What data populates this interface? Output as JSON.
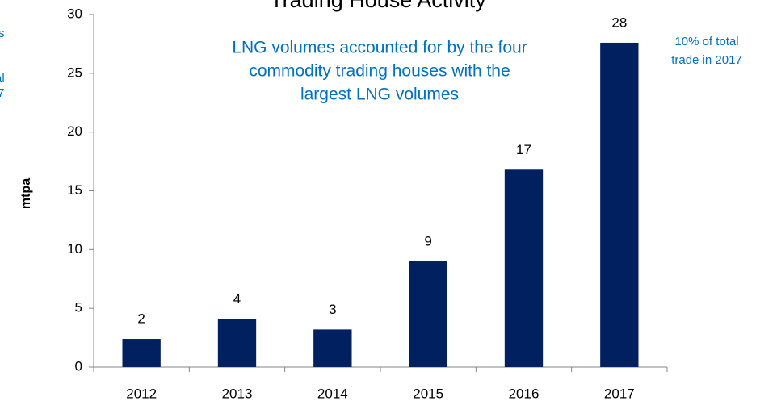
{
  "chart_data": {
    "type": "bar",
    "title": "Trading House Activity",
    "subtitle": [
      "LNG volumes accounted for by the four",
      "commodity trading houses with the",
      "largest LNG volumes"
    ],
    "annotation": [
      "10% of total",
      "trade in 2017"
    ],
    "left_fragments": [
      "s",
      "al",
      "7"
    ],
    "y_label": "mtpa",
    "categories": [
      "2012",
      "2013",
      "2014",
      "2015",
      "2016",
      "2017"
    ],
    "values": [
      2.4,
      4.1,
      3.2,
      9.0,
      16.8,
      27.6
    ],
    "value_labels": [
      "2",
      "4",
      "3",
      "9",
      "17",
      "28"
    ],
    "color": "#002060",
    "ylim": [
      0,
      30
    ],
    "yticks": [
      0,
      5,
      10,
      15,
      20,
      25,
      30
    ],
    "grid": false
  }
}
